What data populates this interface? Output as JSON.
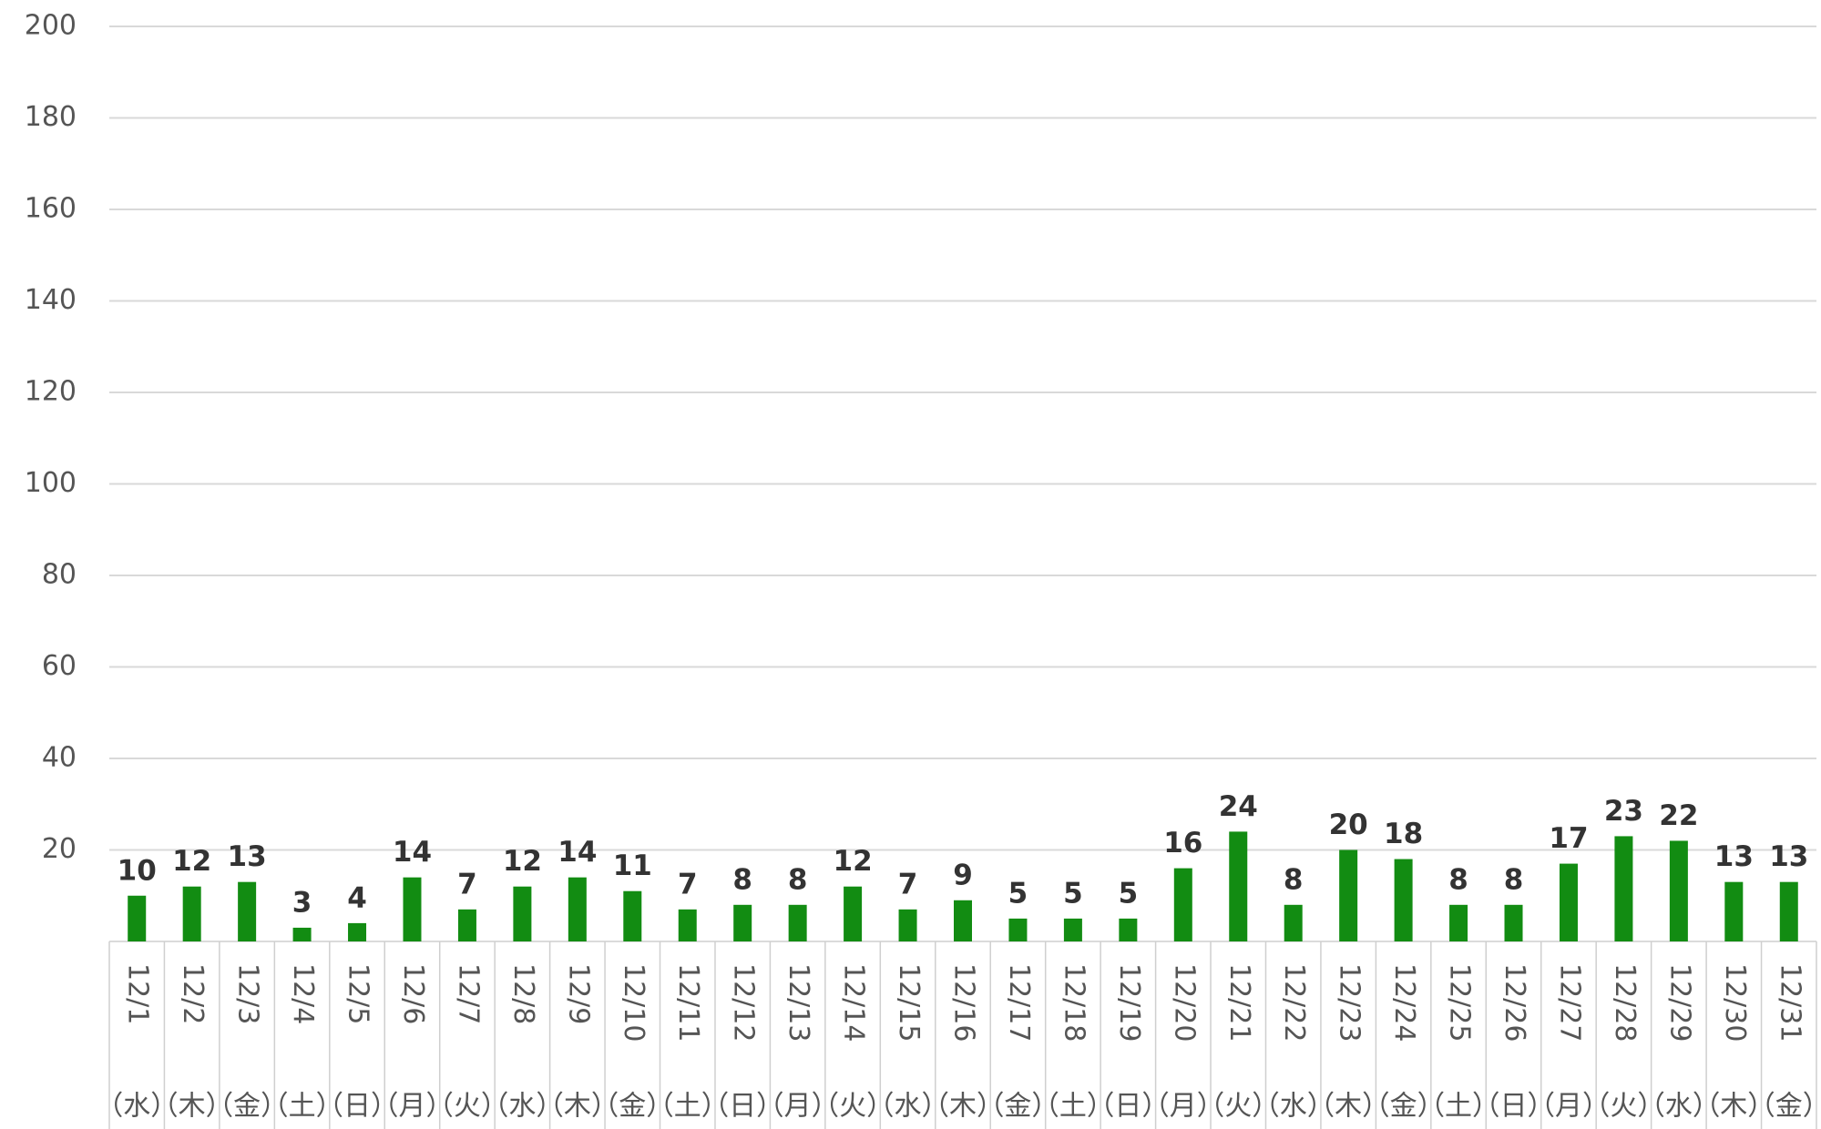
{
  "chart_data": {
    "type": "bar",
    "categories": [
      "12/1",
      "12/2",
      "12/3",
      "12/4",
      "12/5",
      "12/6",
      "12/7",
      "12/8",
      "12/9",
      "12/10",
      "12/11",
      "12/12",
      "12/13",
      "12/14",
      "12/15",
      "12/16",
      "12/17",
      "12/18",
      "12/19",
      "12/20",
      "12/21",
      "12/22",
      "12/23",
      "12/24",
      "12/25",
      "12/26",
      "12/27",
      "12/28",
      "12/29",
      "12/30",
      "12/31"
    ],
    "weekdays": [
      "（水）",
      "（木）",
      "（金）",
      "（土）",
      "（日）",
      "（月）",
      "（火）",
      "（水）",
      "（木）",
      "（金）",
      "（土）",
      "（日）",
      "（月）",
      "（火）",
      "（水）",
      "（木）",
      "（金）",
      "（土）",
      "（日）",
      "（月）",
      "（火）",
      "（水）",
      "（木）",
      "（金）",
      "（土）",
      "（日）",
      "（月）",
      "（火）",
      "（水）",
      "（木）",
      "（金）"
    ],
    "values": [
      10,
      12,
      13,
      3,
      4,
      14,
      7,
      12,
      14,
      11,
      7,
      8,
      8,
      12,
      7,
      9,
      5,
      5,
      5,
      16,
      24,
      8,
      20,
      18,
      8,
      8,
      17,
      23,
      22,
      13,
      13
    ],
    "color": "#128c12",
    "ylim": [
      0,
      200
    ],
    "yticks": [
      20,
      40,
      60,
      80,
      100,
      120,
      140,
      160,
      180,
      200
    ],
    "grid": true
  }
}
